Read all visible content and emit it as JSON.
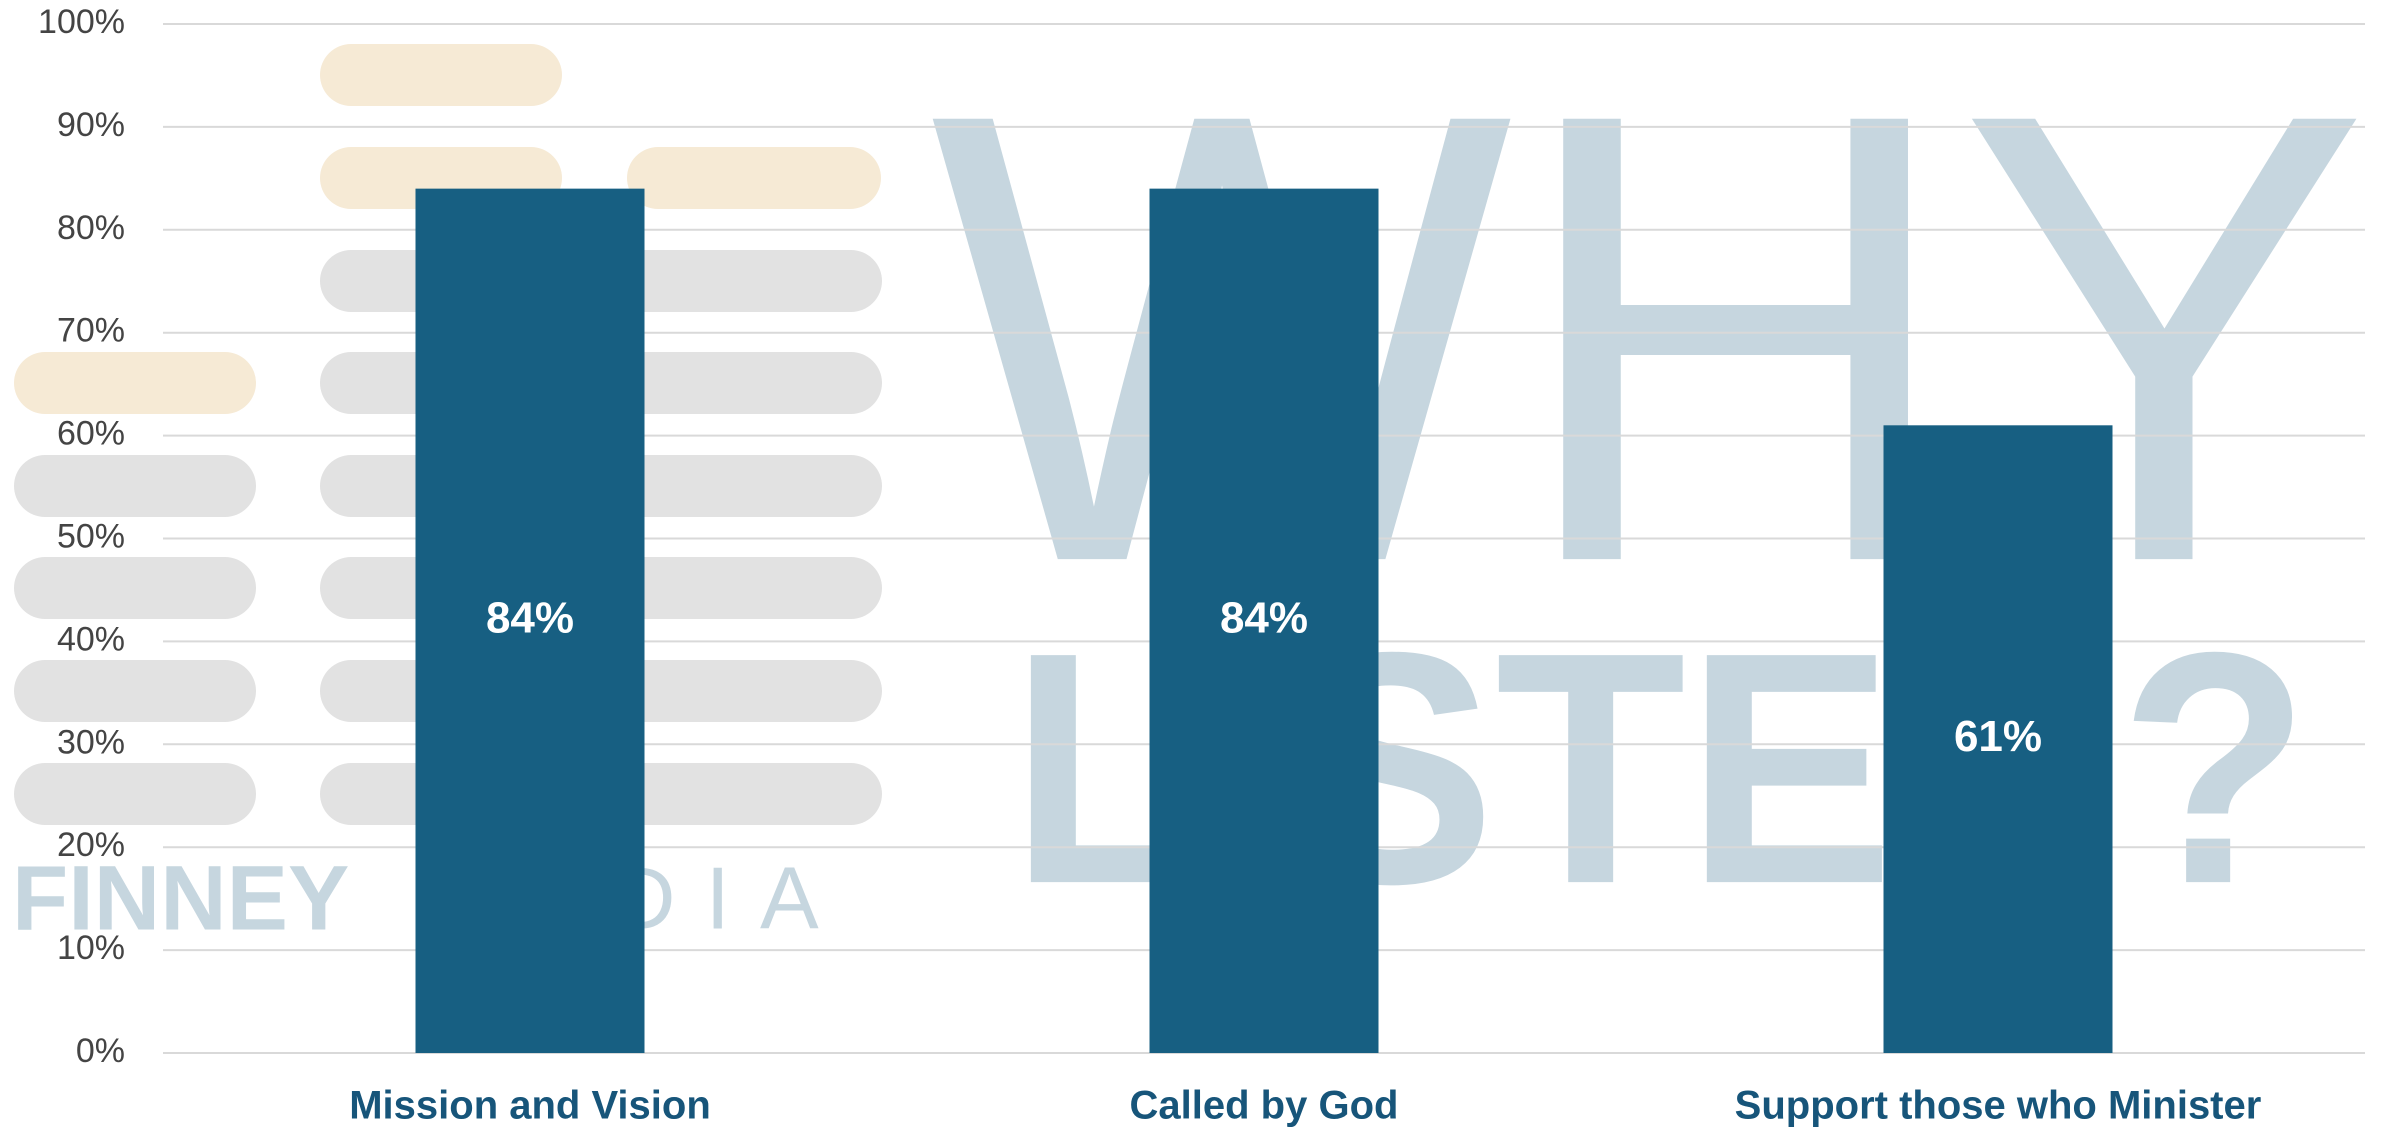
{
  "chart_data": {
    "type": "bar",
    "categories": [
      "Mission and Vision",
      "Called by God",
      "Support those who Minister"
    ],
    "values": [
      84,
      84,
      61
    ],
    "value_labels": [
      "84%",
      "84%",
      "61%"
    ],
    "color": "#175f82",
    "ylim": [
      0,
      100
    ],
    "yticks": [
      {
        "value": 0,
        "label": "0%"
      },
      {
        "value": 10,
        "label": "10%"
      },
      {
        "value": 20,
        "label": "20%"
      },
      {
        "value": 30,
        "label": "30%"
      },
      {
        "value": 40,
        "label": "40%"
      },
      {
        "value": 50,
        "label": "50%"
      },
      {
        "value": 60,
        "label": "60%"
      },
      {
        "value": 70,
        "label": "70%"
      },
      {
        "value": 80,
        "label": "80%"
      },
      {
        "value": 90,
        "label": "90%"
      },
      {
        "value": 100,
        "label": "100%"
      }
    ],
    "grid": true,
    "annotations": [
      "FINNEY",
      "MEDIA",
      "WHY",
      "LISTEN?"
    ]
  }
}
